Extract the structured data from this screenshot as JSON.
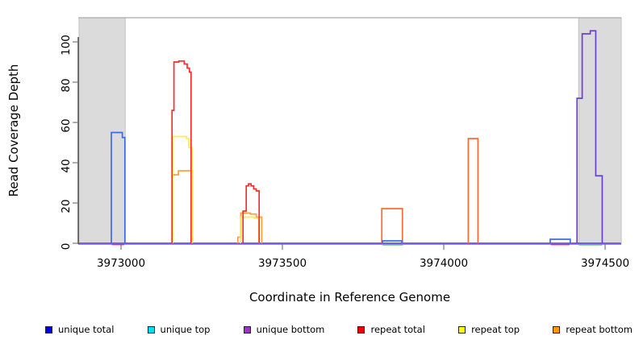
{
  "chart_data": {
    "type": "line",
    "subtype": "step-coverage",
    "title": "",
    "xlabel": "Coordinate in Reference Genome",
    "ylabel": "Read Coverage Depth",
    "xlim": [
      3972870,
      3974551
    ],
    "ylim": [
      0,
      110
    ],
    "x_ticks": [
      3973000,
      3973500,
      3974000,
      3974500
    ],
    "y_ticks": [
      0,
      20,
      40,
      60,
      80,
      100
    ],
    "grid": false,
    "legend_position": "bottom",
    "shaded_regions": [
      {
        "name": "repeat-region-left",
        "x0": 3972870,
        "x1": 3973013
      },
      {
        "name": "repeat-region-right",
        "x0": 3974418,
        "x1": 3974551
      }
    ],
    "shade_fill": "#DBDBDB",
    "shade_border": "#C0C0C0",
    "top_line_color": "#ABABAB",
    "axis_color": "#333333",
    "tick_color": "#777777",
    "baseline": {
      "color": "#7A5BEA",
      "x0": 3972870,
      "x1": 3974549,
      "value": 0
    },
    "legend": [
      {
        "label": "unique total",
        "color": "#0000EE"
      },
      {
        "label": "unique top",
        "color": "#00E0EE"
      },
      {
        "label": "unique bottom",
        "color": "#9933CC"
      },
      {
        "label": "repeat total",
        "color": "#EE0000"
      },
      {
        "label": "repeat top",
        "color": "#FFFF00"
      },
      {
        "label": "repeat bottom",
        "color": "#FF9900"
      }
    ],
    "series": [
      {
        "name": "unlabeled green",
        "color": "#58BB58",
        "runs": [
          {
            "flat": true,
            "points": [
              [
                3973810,
                -0.7
              ]
            ],
            "end": 3973874
          },
          {
            "flat": true,
            "points": [
              [
                3974418,
                -0.7
              ]
            ],
            "end": 3974491
          }
        ]
      },
      {
        "name": "repeat total zero segments",
        "color": "#FF2B2B",
        "runs": [
          {
            "flat": true,
            "points": [
              [
                3972972,
                -0.6
              ]
            ],
            "end": 3973010
          },
          {
            "flat": true,
            "points": [
              [
                3974332,
                -0.6
              ]
            ],
            "end": 3974390
          }
        ]
      },
      {
        "name": "repeat bottom",
        "color": "#FFA040",
        "runs": [
          {
            "points": [
              [
                3973159,
                34
              ],
              [
                3973178,
                36
              ]
            ],
            "end": 3973221
          },
          {
            "points": [
              [
                3973362,
                3
              ],
              [
                3973371,
                15
              ],
              [
                3973401,
                14.5
              ],
              [
                3973419,
                13
              ]
            ],
            "end": 3973436
          },
          {
            "color": "#FF6B35",
            "points": [
              [
                3973808,
                17.2
              ]
            ],
            "end": 3973872
          },
          {
            "color": "#FF6B35",
            "points": [
              [
                3974076,
                52
              ]
            ],
            "end": 3974106
          }
        ]
      },
      {
        "name": "repeat top",
        "color": "#FFEC4A",
        "runs": [
          {
            "points": [
              [
                3973160,
                53
              ],
              [
                3973203,
                52
              ],
              [
                3973210,
                47.5
              ]
            ],
            "end": 3973220
          },
          {
            "points": [
              [
                3973370,
                13
              ],
              [
                3973413,
                12.4
              ]
            ],
            "end": 3973427
          }
        ]
      },
      {
        "name": "repeat total",
        "color": "#FF2B2B",
        "runs": [
          {
            "points": [
              [
                3973158,
                66
              ],
              [
                3973164,
                90
              ],
              [
                3973179,
                90.5
              ],
              [
                3973196,
                89
              ],
              [
                3973205,
                87
              ],
              [
                3973212,
                85
              ]
            ],
            "end": 3973217
          },
          {
            "points": [
              [
                3973378,
                16
              ],
              [
                3973388,
                28.5
              ],
              [
                3973395,
                29.5
              ],
              [
                3973403,
                28.5
              ],
              [
                3973411,
                27
              ],
              [
                3973419,
                26
              ]
            ],
            "end": 3973428
          }
        ]
      },
      {
        "name": "unique total",
        "color": "#3A6CE8",
        "runs": [
          {
            "points": [
              [
                3972970,
                55
              ],
              [
                3973004,
                52.5
              ]
            ],
            "end": 3973012
          },
          {
            "points": [
              [
                3973810,
                1.2
              ]
            ],
            "end": 3973870
          },
          {
            "points": [
              [
                3974330,
                2
              ]
            ],
            "end": 3974392
          }
        ]
      },
      {
        "name": "unique top",
        "color": "#00E0EE",
        "runs": []
      },
      {
        "name": "unique bottom",
        "color": "#6A40D8",
        "runs": [
          {
            "points": [
              [
                3974413,
                72
              ],
              [
                3974429,
                104
              ],
              [
                3974454,
                105.5
              ],
              [
                3974471,
                33.5
              ]
            ],
            "end": 3974491
          }
        ]
      }
    ]
  }
}
